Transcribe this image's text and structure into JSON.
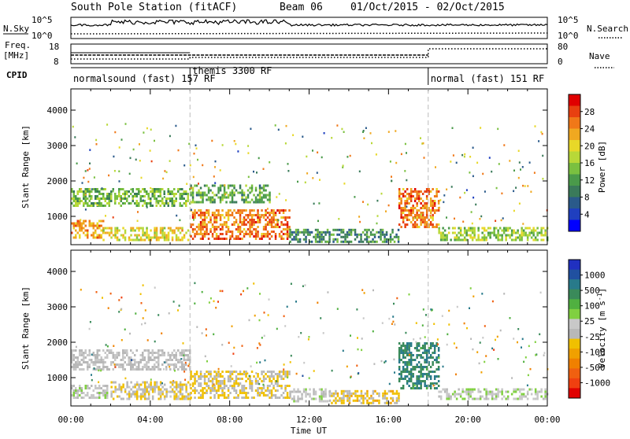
{
  "header": {
    "station": "South Pole Station (fitACF)",
    "beam": "Beam 06",
    "dates": "01/Oct/2015 - 02/Oct/2015"
  },
  "noise_panel": {
    "left_label": "N.Sky",
    "right_label": "N.Search",
    "left_ticks": [
      "10^5",
      "10^0"
    ],
    "right_ticks": [
      "10^5",
      "10^0"
    ]
  },
  "freq_panel": {
    "left_label_1": "Freq.",
    "left_label_2": "[MHz]",
    "right_label": "Nave",
    "left_ticks": [
      "18",
      "8"
    ],
    "right_ticks": [
      "80",
      "0"
    ]
  },
  "cpid": {
    "label": "CPID",
    "modes": [
      {
        "text": "normalsound (fast) 157 RF",
        "start_hour": 0
      },
      {
        "text": "themis 3300 RF",
        "start_hour": 6
      },
      {
        "text": "normal (fast) 151 RF",
        "start_hour": 18
      }
    ]
  },
  "colorbars": {
    "power": {
      "label": "Power [dB]",
      "ticks": [
        "28",
        "24",
        "20",
        "16",
        "12",
        "8",
        "4"
      ],
      "colors": [
        "#0000ff",
        "#1f3fbf",
        "#2a5a8a",
        "#3a7a5a",
        "#4a9a4a",
        "#7ac040",
        "#b8d838",
        "#e8d828",
        "#f0a820",
        "#f07818",
        "#e84010",
        "#e00000"
      ]
    },
    "velocity": {
      "label": "Velocity [m s",
      "label_sup": "-1",
      "label_close": "]",
      "ticks": [
        "1000",
        "500",
        "100",
        "25",
        "-25",
        "-100",
        "-500",
        "-1000"
      ],
      "colors": [
        "#2030c0",
        "#2050a0",
        "#287a8a",
        "#3a8a5a",
        "#50b040",
        "#80d040",
        "#c8c8c8",
        "#b8b8b8",
        "#f0c000",
        "#f0a000",
        "#f08000",
        "#f06010",
        "#f04010",
        "#e00000"
      ]
    }
  },
  "chart_data": {
    "type": "heatmap",
    "x_ticks": [
      "00:00",
      "04:00",
      "08:00",
      "12:00",
      "16:00",
      "20:00",
      "00:00"
    ],
    "xlim_hours": [
      0,
      24
    ],
    "xlabel": "Time UT",
    "ylabel": "Slant Range [km]",
    "y_ticks": [
      "4000",
      "3000",
      "2000",
      "1000"
    ],
    "ylim_km": [
      200,
      4600
    ],
    "mode_change_hours": [
      6,
      18
    ],
    "power_regions": [
      {
        "t0": 0.0,
        "t1": 1.6,
        "r0": 400,
        "r1": 900,
        "value_db": 24
      },
      {
        "t0": 1.6,
        "t1": 6.0,
        "r0": 350,
        "r1": 700,
        "value_db": 20
      },
      {
        "t0": 0.0,
        "t1": 6.0,
        "r0": 1300,
        "r1": 1800,
        "value_db": 14
      },
      {
        "t0": 6.0,
        "t1": 11.0,
        "r0": 350,
        "r1": 1200,
        "value_db": 26
      },
      {
        "t0": 6.0,
        "t1": 10.0,
        "r0": 1400,
        "r1": 1900,
        "value_db": 12
      },
      {
        "t0": 11.0,
        "t1": 16.5,
        "r0": 300,
        "r1": 650,
        "value_db": 10
      },
      {
        "t0": 16.5,
        "t1": 18.5,
        "r0": 700,
        "r1": 1800,
        "value_db": 26
      },
      {
        "t0": 18.5,
        "t1": 24.0,
        "r0": 350,
        "r1": 700,
        "value_db": 16
      }
    ],
    "velocity_regions": [
      {
        "t0": 0.0,
        "t1": 1.8,
        "r0": 400,
        "r1": 800,
        "value_ms": 50
      },
      {
        "t0": 0.0,
        "t1": 6.0,
        "r0": 1200,
        "r1": 1800,
        "value_ms": 0
      },
      {
        "t0": 2.0,
        "t1": 6.0,
        "r0": 400,
        "r1": 900,
        "value_ms": -100
      },
      {
        "t0": 6.0,
        "t1": 11.0,
        "r0": 400,
        "r1": 1200,
        "value_ms": -150
      },
      {
        "t0": 11.0,
        "t1": 13.0,
        "r0": 300,
        "r1": 700,
        "value_ms": 50
      },
      {
        "t0": 13.0,
        "t1": 16.5,
        "r0": 300,
        "r1": 650,
        "value_ms": -200
      },
      {
        "t0": 16.5,
        "t1": 18.5,
        "r0": 700,
        "r1": 2000,
        "value_ms": 600
      },
      {
        "t0": 18.5,
        "t1": 24.0,
        "r0": 400,
        "r1": 700,
        "value_ms": 100
      }
    ]
  }
}
